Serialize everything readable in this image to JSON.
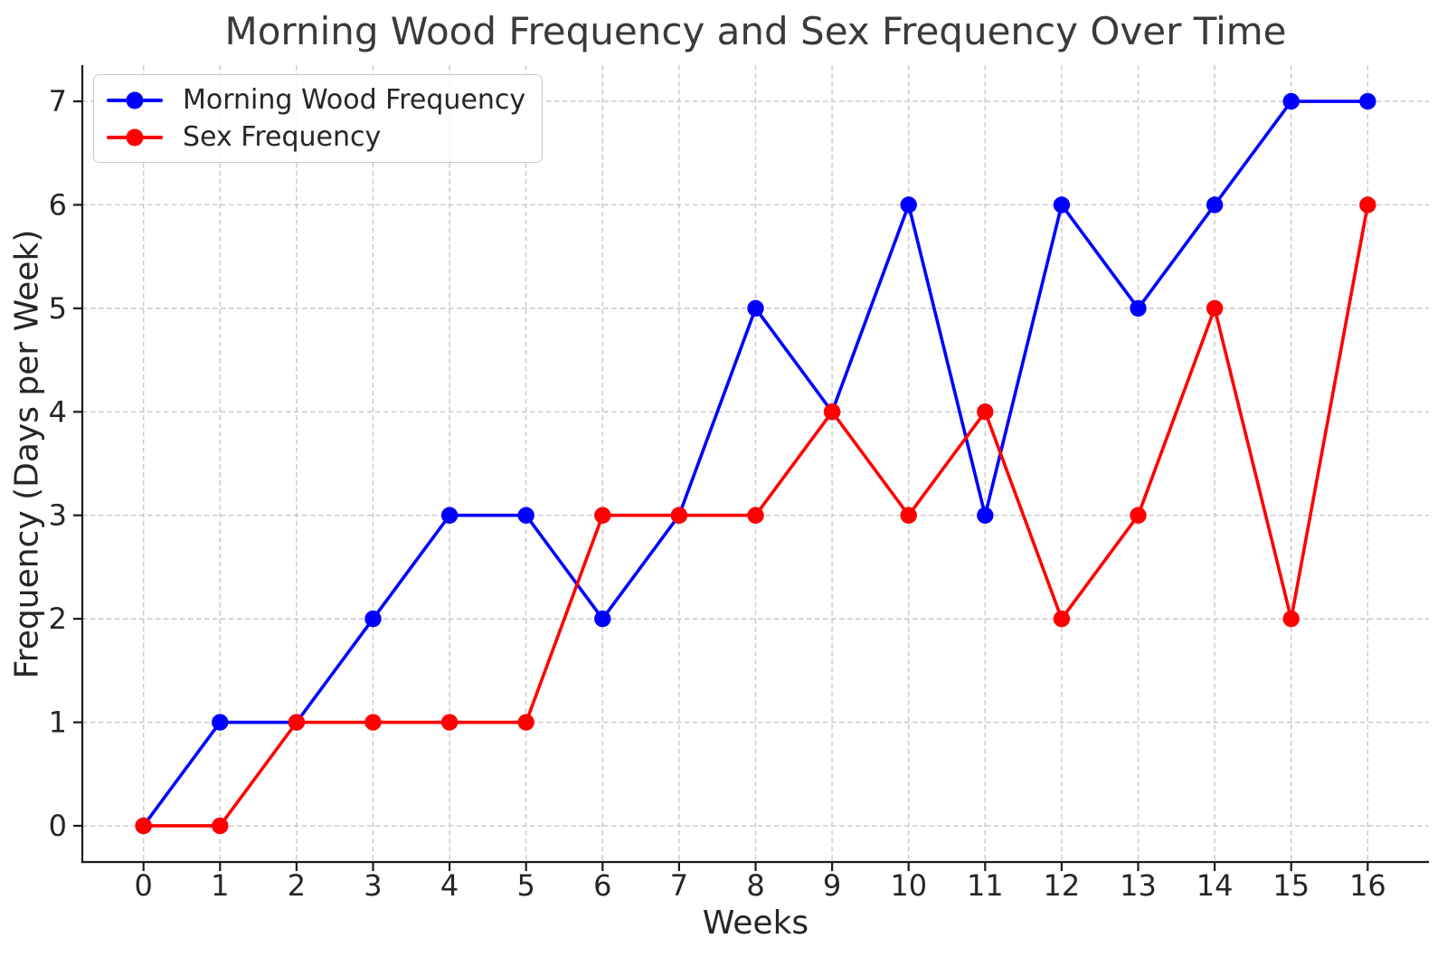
{
  "chart_data": {
    "type": "line",
    "title": "Morning Wood Frequency and Sex Frequency Over Time",
    "xlabel": "Weeks",
    "ylabel": "Frequency (Days per Week)",
    "x": [
      0,
      1,
      2,
      3,
      4,
      5,
      6,
      7,
      8,
      9,
      10,
      11,
      12,
      13,
      14,
      15,
      16
    ],
    "series": [
      {
        "name": "Morning Wood Frequency",
        "color": "#0000ff",
        "values": [
          0,
          1,
          1,
          2,
          3,
          3,
          2,
          3,
          5,
          4,
          6,
          3,
          6,
          5,
          6,
          7,
          7
        ]
      },
      {
        "name": "Sex Frequency",
        "color": "#ff0000",
        "values": [
          0,
          0,
          1,
          1,
          1,
          1,
          3,
          3,
          3,
          4,
          3,
          4,
          2,
          3,
          5,
          2,
          6
        ]
      }
    ],
    "x_ticks": [
      "0",
      "1",
      "2",
      "3",
      "4",
      "5",
      "6",
      "7",
      "8",
      "9",
      "10",
      "11",
      "12",
      "13",
      "14",
      "15",
      "16"
    ],
    "y_ticks": [
      "0",
      "1",
      "2",
      "3",
      "4",
      "5",
      "6",
      "7"
    ],
    "xlim": [
      -0.8,
      16.8
    ],
    "ylim": [
      -0.35,
      7.35
    ],
    "grid": true,
    "grid_style": "dashed",
    "legend_position": "upper left",
    "marker": "circle"
  },
  "colors": {
    "grid": "#c8c8c8",
    "spine": "#1a1a1a",
    "tick_text": "#262626",
    "background": "#ffffff"
  }
}
